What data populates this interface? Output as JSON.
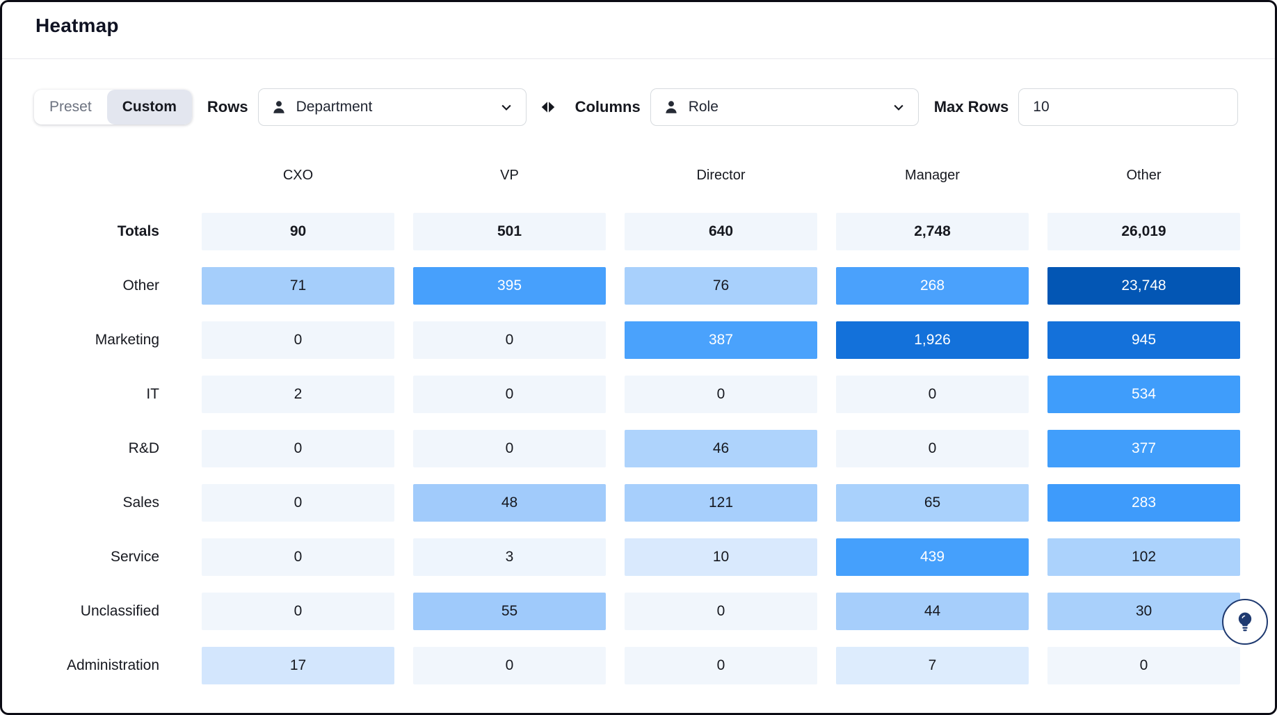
{
  "header": {
    "title": "Heatmap"
  },
  "controls": {
    "mode_toggle": {
      "options": [
        "Preset",
        "Custom"
      ],
      "selected": "Custom"
    },
    "rows_label": "Rows",
    "rows_select": {
      "value": "Department",
      "icon": "person-icon"
    },
    "swap_icon": "swap-horizontal-icon",
    "columns_label": "Columns",
    "columns_select": {
      "value": "Role",
      "icon": "person-icon"
    },
    "max_rows_label": "Max Rows",
    "max_rows_value": "10"
  },
  "heatmap": {
    "columns": [
      "CXO",
      "VP",
      "Director",
      "Manager",
      "Other"
    ],
    "rows": [
      {
        "label": "Totals",
        "bold": true,
        "cells": [
          {
            "value": "90",
            "bg": "#f1f6fc",
            "fg": "#16181f"
          },
          {
            "value": "501",
            "bg": "#f1f6fc",
            "fg": "#16181f"
          },
          {
            "value": "640",
            "bg": "#f1f6fc",
            "fg": "#16181f"
          },
          {
            "value": "2,748",
            "bg": "#f1f6fc",
            "fg": "#16181f"
          },
          {
            "value": "26,019",
            "bg": "#f1f6fc",
            "fg": "#16181f"
          }
        ]
      },
      {
        "label": "Other",
        "bold": false,
        "cells": [
          {
            "value": "71",
            "bg": "#a5cefb",
            "fg": "#16181f"
          },
          {
            "value": "395",
            "bg": "#47a0fc",
            "fg": "#ffffff"
          },
          {
            "value": "76",
            "bg": "#a8d0fc",
            "fg": "#16181f"
          },
          {
            "value": "268",
            "bg": "#4aa1fc",
            "fg": "#ffffff"
          },
          {
            "value": "23,748",
            "bg": "#0356b4",
            "fg": "#ffffff"
          }
        ]
      },
      {
        "label": "Marketing",
        "bold": false,
        "cells": [
          {
            "value": "0",
            "bg": "#f1f6fc",
            "fg": "#16181f"
          },
          {
            "value": "0",
            "bg": "#f1f6fc",
            "fg": "#16181f"
          },
          {
            "value": "387",
            "bg": "#4aa2fc",
            "fg": "#ffffff"
          },
          {
            "value": "1,926",
            "bg": "#1371da",
            "fg": "#ffffff"
          },
          {
            "value": "945",
            "bg": "#1471da",
            "fg": "#ffffff"
          }
        ]
      },
      {
        "label": "IT",
        "bold": false,
        "cells": [
          {
            "value": "2",
            "bg": "#f1f6fc",
            "fg": "#16181f"
          },
          {
            "value": "0",
            "bg": "#f1f6fc",
            "fg": "#16181f"
          },
          {
            "value": "0",
            "bg": "#f1f6fc",
            "fg": "#16181f"
          },
          {
            "value": "0",
            "bg": "#f1f6fc",
            "fg": "#16181f"
          },
          {
            "value": "534",
            "bg": "#3f9dfb",
            "fg": "#ffffff"
          }
        ]
      },
      {
        "label": "R&D",
        "bold": false,
        "cells": [
          {
            "value": "0",
            "bg": "#f1f6fc",
            "fg": "#16181f"
          },
          {
            "value": "0",
            "bg": "#f1f6fc",
            "fg": "#16181f"
          },
          {
            "value": "46",
            "bg": "#aed3fc",
            "fg": "#16181f"
          },
          {
            "value": "0",
            "bg": "#f1f6fc",
            "fg": "#16181f"
          },
          {
            "value": "377",
            "bg": "#419efb",
            "fg": "#ffffff"
          }
        ]
      },
      {
        "label": "Sales",
        "bold": false,
        "cells": [
          {
            "value": "0",
            "bg": "#f1f6fc",
            "fg": "#16181f"
          },
          {
            "value": "48",
            "bg": "#a1cbfb",
            "fg": "#16181f"
          },
          {
            "value": "121",
            "bg": "#a7cffc",
            "fg": "#16181f"
          },
          {
            "value": "65",
            "bg": "#a9d1fc",
            "fg": "#16181f"
          },
          {
            "value": "283",
            "bg": "#3e9bfb",
            "fg": "#ffffff"
          }
        ]
      },
      {
        "label": "Service",
        "bold": false,
        "cells": [
          {
            "value": "0",
            "bg": "#f1f6fc",
            "fg": "#16181f"
          },
          {
            "value": "3",
            "bg": "#eef5fd",
            "fg": "#16181f"
          },
          {
            "value": "10",
            "bg": "#d9e9fd",
            "fg": "#16181f"
          },
          {
            "value": "439",
            "bg": "#45a0fc",
            "fg": "#ffffff"
          },
          {
            "value": "102",
            "bg": "#abd2fc",
            "fg": "#16181f"
          }
        ]
      },
      {
        "label": "Unclassified",
        "bold": false,
        "cells": [
          {
            "value": "0",
            "bg": "#f1f6fc",
            "fg": "#16181f"
          },
          {
            "value": "55",
            "bg": "#9fcafb",
            "fg": "#16181f"
          },
          {
            "value": "0",
            "bg": "#f1f6fc",
            "fg": "#16181f"
          },
          {
            "value": "44",
            "bg": "#a6cefb",
            "fg": "#16181f"
          },
          {
            "value": "30",
            "bg": "#a9d0fb",
            "fg": "#16181f"
          }
        ]
      },
      {
        "label": "Administration",
        "bold": false,
        "cells": [
          {
            "value": "17",
            "bg": "#d3e6fd",
            "fg": "#16181f"
          },
          {
            "value": "0",
            "bg": "#f1f6fc",
            "fg": "#16181f"
          },
          {
            "value": "0",
            "bg": "#f1f6fc",
            "fg": "#16181f"
          },
          {
            "value": "7",
            "bg": "#ddecfd",
            "fg": "#16181f"
          },
          {
            "value": "0",
            "bg": "#f1f6fc",
            "fg": "#16181f"
          }
        ]
      }
    ]
  },
  "chart_data": {
    "type": "heatmap",
    "title": "Heatmap",
    "x_categories": [
      "CXO",
      "VP",
      "Director",
      "Manager",
      "Other"
    ],
    "y_categories": [
      "Other",
      "Marketing",
      "IT",
      "R&D",
      "Sales",
      "Service",
      "Unclassified",
      "Administration"
    ],
    "totals": [
      90,
      501,
      640,
      2748,
      26019
    ],
    "values": [
      [
        71,
        395,
        76,
        268,
        23748
      ],
      [
        0,
        0,
        387,
        1926,
        945
      ],
      [
        2,
        0,
        0,
        0,
        534
      ],
      [
        0,
        0,
        46,
        0,
        377
      ],
      [
        0,
        48,
        121,
        65,
        283
      ],
      [
        0,
        3,
        10,
        439,
        102
      ],
      [
        0,
        55,
        0,
        44,
        30
      ],
      [
        17,
        0,
        0,
        7,
        0
      ]
    ],
    "color_scale": {
      "min_color": "#f1f6fc",
      "max_color": "#0356b4"
    },
    "legend_position": "none",
    "grid": false
  },
  "fab": {
    "icon": "lightbulb-icon"
  },
  "colors": {
    "accent_dark_blue": "#0356b4",
    "accent_mid_blue": "#1471da",
    "accent_blue": "#47a0fc",
    "accent_light_blue": "#a5cefb",
    "cell_base": "#f1f6fc",
    "toggle_active_bg": "#e3e6ef",
    "border": "#d6dade",
    "fab_navy": "#1f3a70"
  }
}
